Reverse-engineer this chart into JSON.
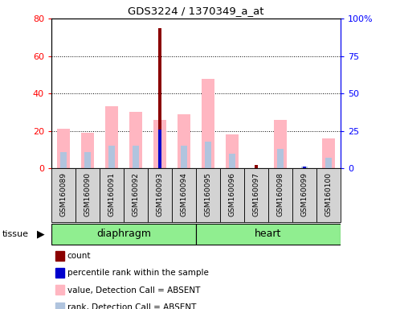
{
  "title": "GDS3224 / 1370349_a_at",
  "samples": [
    "GSM160089",
    "GSM160090",
    "GSM160091",
    "GSM160092",
    "GSM160093",
    "GSM160094",
    "GSM160095",
    "GSM160096",
    "GSM160097",
    "GSM160098",
    "GSM160099",
    "GSM160100"
  ],
  "count_values": [
    0,
    0,
    0,
    0,
    75,
    0,
    0,
    0,
    2,
    0,
    0,
    0
  ],
  "rank_values": [
    0,
    0,
    0,
    0,
    26,
    0,
    0,
    0,
    0,
    0,
    1,
    0
  ],
  "absent_value": [
    21,
    19,
    33,
    30,
    26,
    29,
    48,
    18,
    0,
    26,
    0,
    16
  ],
  "absent_rank": [
    11,
    11,
    15,
    15,
    0,
    15,
    18,
    10,
    0,
    13,
    1,
    7
  ],
  "groups": [
    {
      "label": "diaphragm",
      "start": 0,
      "end": 6,
      "color": "#90EE90"
    },
    {
      "label": "heart",
      "start": 6,
      "end": 12,
      "color": "#90EE90"
    }
  ],
  "ylim_left": [
    0,
    80
  ],
  "ylim_right": [
    0,
    100
  ],
  "yticks_left": [
    0,
    20,
    40,
    60,
    80
  ],
  "yticks_right": [
    0,
    25,
    50,
    75,
    100
  ],
  "yticklabels_right": [
    "0",
    "25",
    "50",
    "75",
    "100%"
  ],
  "color_count": "#8B0000",
  "color_rank": "#0000CD",
  "color_absent_value": "#FFB6C1",
  "color_absent_rank": "#B0C4DE",
  "bar_width": 0.55,
  "tissue_label": "tissue",
  "legend_items": [
    {
      "color": "#8B0000",
      "label": "count"
    },
    {
      "color": "#0000CD",
      "label": "percentile rank within the sample"
    },
    {
      "color": "#FFB6C1",
      "label": "value, Detection Call = ABSENT"
    },
    {
      "color": "#B0C4DE",
      "label": "rank, Detection Call = ABSENT"
    }
  ],
  "background_color": "#ffffff",
  "label_box_color": "#d3d3d3"
}
